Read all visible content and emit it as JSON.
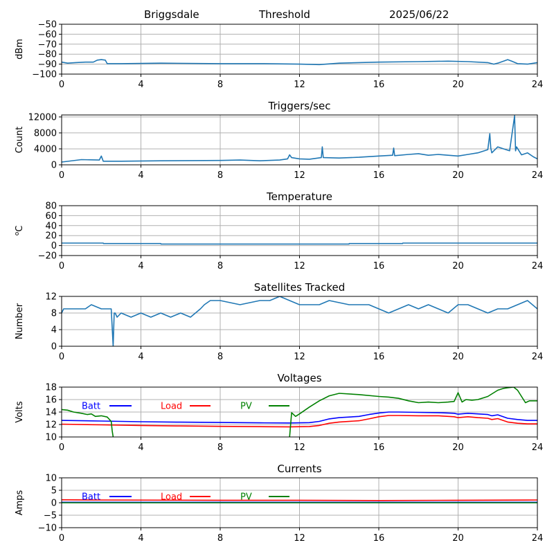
{
  "header": {
    "station": "Briggsdale",
    "mode": "Threshold",
    "date": "2025/06/22"
  },
  "colors": {
    "series": "#1f77b4",
    "batt": "#0000ff",
    "load": "#ff0000",
    "pv": "#008000",
    "grid": "#b0b0b0"
  },
  "chart_data": [
    {
      "type": "line",
      "title": "",
      "xlabel": "",
      "ylabel": "dBm",
      "xlim": [
        0,
        24
      ],
      "ylim": [
        -100,
        -50
      ],
      "xticks": [
        0,
        4,
        8,
        12,
        16,
        20,
        24
      ],
      "yticks": [
        -100,
        -90,
        -80,
        -70,
        -60,
        -50
      ],
      "grid": true,
      "series": [
        {
          "color_key": "series",
          "x": [
            0,
            0.3,
            0.7,
            1.2,
            1.6,
            1.8,
            2.0,
            2.2,
            2.3,
            3,
            5,
            8,
            10,
            12,
            13,
            14,
            16,
            18,
            19.5,
            20.5,
            21.5,
            21.8,
            22,
            22.3,
            22.5,
            22.7,
            23,
            23.5,
            24
          ],
          "y": [
            -88,
            -89,
            -88.5,
            -88,
            -88,
            -86,
            -85.5,
            -86,
            -89.5,
            -89.5,
            -89,
            -89.5,
            -89.5,
            -90,
            -90.5,
            -89,
            -88,
            -87.5,
            -87,
            -87.5,
            -88.5,
            -90,
            -89,
            -87,
            -85.5,
            -87,
            -89.5,
            -90,
            -88.5
          ]
        }
      ]
    },
    {
      "type": "line",
      "title": "Triggers/sec",
      "xlabel": "",
      "ylabel": "Count",
      "xlim": [
        0,
        24
      ],
      "ylim": [
        0,
        12500
      ],
      "xticks": [
        0,
        4,
        8,
        12,
        16,
        20,
        24
      ],
      "yticks": [
        0,
        4000,
        8000,
        12000
      ],
      "grid": true,
      "series": [
        {
          "color_key": "series",
          "x": [
            0,
            1,
            1.9,
            2.0,
            2.1,
            3,
            5,
            8,
            9,
            10,
            11,
            11.4,
            11.5,
            11.6,
            12,
            12.5,
            13.1,
            13.15,
            13.2,
            14,
            15,
            16,
            16.7,
            16.75,
            16.8,
            17.5,
            18,
            18.5,
            19,
            19.5,
            20,
            20.5,
            21,
            21.5,
            21.6,
            21.65,
            21.7,
            22,
            22.3,
            22.6,
            22.85,
            22.9,
            22.95,
            23.2,
            23.5,
            23.8,
            24
          ],
          "y": [
            700,
            1300,
            1200,
            2200,
            900,
            900,
            1000,
            1100,
            1200,
            1000,
            1200,
            1500,
            2500,
            1800,
            1500,
            1400,
            1800,
            4500,
            1800,
            1700,
            1900,
            2200,
            2400,
            4200,
            2300,
            2600,
            2800,
            2400,
            2600,
            2400,
            2200,
            2600,
            3000,
            3800,
            7800,
            4200,
            3000,
            4500,
            4000,
            3500,
            12300,
            3500,
            4500,
            2500,
            3000,
            2000,
            1500
          ]
        }
      ]
    },
    {
      "type": "line",
      "title": "Temperature",
      "xlabel": "",
      "ylabel": "°C",
      "ylabel_sup": "o",
      "ylabel_base": "C",
      "xlim": [
        0,
        24
      ],
      "ylim": [
        -20,
        80
      ],
      "xticks": [
        0,
        4,
        8,
        12,
        16,
        20,
        24
      ],
      "yticks": [
        -20,
        0,
        20,
        40,
        60,
        80
      ],
      "grid": true,
      "series": [
        {
          "color_key": "series",
          "x": [
            0,
            2.1,
            2.11,
            5.0,
            5.01,
            14.5,
            14.51,
            17.2,
            17.21,
            24
          ],
          "y": [
            5,
            5,
            4,
            4,
            3,
            3,
            4,
            4,
            5,
            5
          ]
        }
      ]
    },
    {
      "type": "line",
      "title": "Satellites Tracked",
      "xlabel": "",
      "ylabel": "Number",
      "xlim": [
        0,
        24
      ],
      "ylim": [
        0,
        12
      ],
      "xticks": [
        0,
        4,
        8,
        12,
        16,
        20,
        24
      ],
      "yticks": [
        0,
        4,
        8,
        12
      ],
      "grid": true,
      "series": [
        {
          "color_key": "series",
          "x": [
            0,
            0.1,
            0.3,
            1.2,
            1.5,
            2.0,
            2.5,
            2.6,
            2.65,
            2.7,
            2.8,
            3.0,
            3.5,
            4.0,
            4.5,
            5.0,
            5.5,
            6.0,
            6.5,
            7.0,
            7.2,
            7.5,
            8.0,
            9.0,
            10.0,
            10.5,
            11.0,
            11.5,
            12.0,
            13.0,
            13.5,
            14.5,
            15.5,
            16.0,
            16.5,
            17.0,
            17.5,
            18.0,
            18.5,
            19.0,
            19.5,
            20.0,
            20.5,
            21.0,
            21.5,
            22.0,
            22.5,
            23.0,
            23.5,
            24
          ],
          "y": [
            8,
            9,
            9,
            9,
            10,
            9,
            9,
            0,
            8,
            8,
            7,
            8,
            7,
            8,
            7,
            8,
            7,
            8,
            7,
            9,
            10,
            11,
            11,
            10,
            11,
            11,
            12,
            11,
            10,
            10,
            11,
            10,
            10,
            9,
            8,
            9,
            10,
            9,
            10,
            9,
            8,
            10,
            10,
            9,
            8,
            9,
            9,
            10,
            11,
            9
          ]
        }
      ]
    },
    {
      "type": "line",
      "title": "Voltages",
      "xlabel": "",
      "ylabel": "Volts",
      "xlim": [
        0,
        24
      ],
      "ylim": [
        10,
        18
      ],
      "xticks": [
        0,
        4,
        8,
        12,
        16,
        20,
        24
      ],
      "yticks": [
        10,
        12,
        14,
        16,
        18
      ],
      "grid": true,
      "legend": [
        "Batt",
        "Load",
        "PV"
      ],
      "series": [
        {
          "name": "Batt",
          "color_key": "batt",
          "x": [
            0,
            2,
            4,
            6,
            8,
            10,
            11.5,
            12.5,
            13,
            13.5,
            14,
            15,
            15.5,
            16,
            16.5,
            17,
            18,
            19,
            19.8,
            20,
            20.5,
            21,
            21.5,
            21.7,
            22,
            22.5,
            23,
            23.5,
            24
          ],
          "y": [
            12.65,
            12.55,
            12.45,
            12.38,
            12.32,
            12.27,
            12.25,
            12.3,
            12.5,
            12.9,
            13.1,
            13.3,
            13.6,
            13.85,
            14.0,
            14.0,
            13.95,
            13.9,
            13.8,
            13.65,
            13.8,
            13.7,
            13.6,
            13.4,
            13.55,
            13.0,
            12.8,
            12.65,
            12.65
          ]
        },
        {
          "name": "Load",
          "color_key": "load",
          "x": [
            0,
            2,
            4,
            6,
            8,
            10,
            11.5,
            12.5,
            13,
            13.5,
            14,
            15,
            15.5,
            16,
            16.5,
            17,
            18,
            19,
            19.8,
            20,
            20.5,
            21,
            21.5,
            21.7,
            22,
            22.5,
            23,
            23.5,
            24
          ],
          "y": [
            12.05,
            11.95,
            11.85,
            11.77,
            11.7,
            11.65,
            11.62,
            11.68,
            11.85,
            12.2,
            12.4,
            12.6,
            12.9,
            13.25,
            13.45,
            13.45,
            13.4,
            13.4,
            13.25,
            13.1,
            13.25,
            13.1,
            13.0,
            12.8,
            12.95,
            12.4,
            12.2,
            12.1,
            12.1
          ]
        },
        {
          "name": "PV",
          "color_key": "pv",
          "x": [
            0,
            0.3,
            0.6,
            1.0,
            1.3,
            1.5,
            1.7,
            2.0,
            2.3,
            2.5,
            2.55,
            2.6,
            2.62,
            11.4,
            11.5,
            11.6,
            11.8,
            12.0,
            12.5,
            13.0,
            13.5,
            14.0,
            15.0,
            16.0,
            16.5,
            17.0,
            17.5,
            18.0,
            18.5,
            19.0,
            19.5,
            19.8,
            20.0,
            20.2,
            20.4,
            20.7,
            21.0,
            21.5,
            22.0,
            22.3,
            22.5,
            22.8,
            23.0,
            23.2,
            23.4,
            23.6,
            24
          ],
          "y": [
            14.4,
            14.3,
            14.0,
            13.8,
            13.6,
            13.7,
            13.3,
            13.4,
            13.2,
            12.5,
            11.0,
            10.0,
            9.5,
            9.5,
            10.0,
            13.9,
            13.3,
            13.7,
            14.8,
            15.8,
            16.6,
            17.0,
            16.8,
            16.5,
            16.4,
            16.2,
            15.8,
            15.5,
            15.6,
            15.5,
            15.6,
            15.7,
            17.1,
            15.6,
            16.0,
            15.9,
            16.0,
            16.5,
            17.5,
            17.8,
            17.9,
            18.0,
            17.5,
            16.5,
            15.5,
            15.8,
            15.8
          ]
        }
      ]
    },
    {
      "type": "line",
      "title": "Currents",
      "xlabel": "",
      "ylabel": "Amps",
      "xlim": [
        0,
        24
      ],
      "ylim": [
        -10,
        10
      ],
      "xticks": [
        0,
        4,
        8,
        12,
        16,
        20,
        24
      ],
      "yticks": [
        -10,
        -5,
        0,
        5,
        10
      ],
      "grid": true,
      "legend": [
        "Batt",
        "Load",
        "PV"
      ],
      "series": [
        {
          "name": "Batt",
          "color_key": "batt",
          "x": [
            0,
            24
          ],
          "y": [
            0.2,
            0.2
          ]
        },
        {
          "name": "Load",
          "color_key": "load",
          "x": [
            0,
            2,
            8,
            12,
            16,
            20,
            24
          ],
          "y": [
            1.2,
            1.1,
            1.0,
            1.0,
            0.9,
            1.0,
            1.1
          ]
        },
        {
          "name": "PV",
          "color_key": "pv",
          "x": [
            0,
            24
          ],
          "y": [
            0.0,
            0.0
          ]
        }
      ]
    }
  ]
}
